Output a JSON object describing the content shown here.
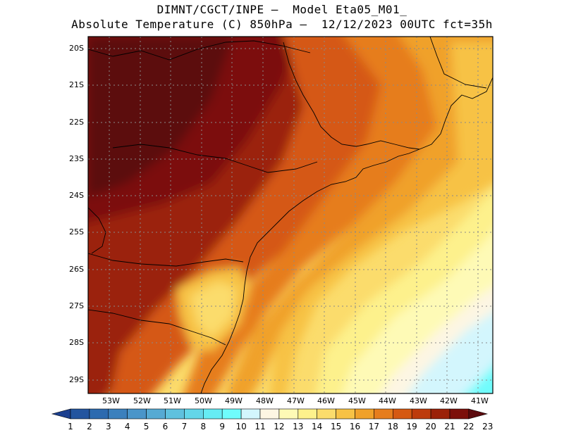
{
  "header": {
    "line1": "DIMNT/CGCT/INPE –  Model Eta05_M01_",
    "line2": "Absolute Temperature (C) 850hPa –  12/12/2023 00UTC fct=35h"
  },
  "map": {
    "lat_labels": [
      "20S",
      "21S",
      "22S",
      "23S",
      "24S",
      "25S",
      "26S",
      "27S",
      "28S",
      "29S"
    ],
    "lon_labels": [
      "53W",
      "52W",
      "51W",
      "50W",
      "49W",
      "48W",
      "47W",
      "46W",
      "45W",
      "44W",
      "43W",
      "42W",
      "41W"
    ],
    "variable": "Absolute Temperature (C) 850hPa"
  },
  "colorbar": {
    "labels": [
      "1",
      "2",
      "3",
      "4",
      "5",
      "6",
      "7",
      "8",
      "9",
      "10",
      "11",
      "12",
      "13",
      "14",
      "15",
      "16",
      "17",
      "18",
      "19",
      "20",
      "21",
      "22",
      "23"
    ],
    "colors": [
      "#1b3f8f",
      "#23559f",
      "#2c6aaf",
      "#3b80bd",
      "#4a95c9",
      "#56aad3",
      "#5fc1de",
      "#63d6e9",
      "#66ecf4",
      "#6ffcfc",
      "#d3f6fd",
      "#fdf6e3",
      "#fefab6",
      "#fdf18c",
      "#fbdc6c",
      "#f7c245",
      "#f0a12a",
      "#e67d1d",
      "#d55912",
      "#bd3b0c",
      "#9b2108",
      "#7c0f0a",
      "#5c0a0e"
    ]
  }
}
